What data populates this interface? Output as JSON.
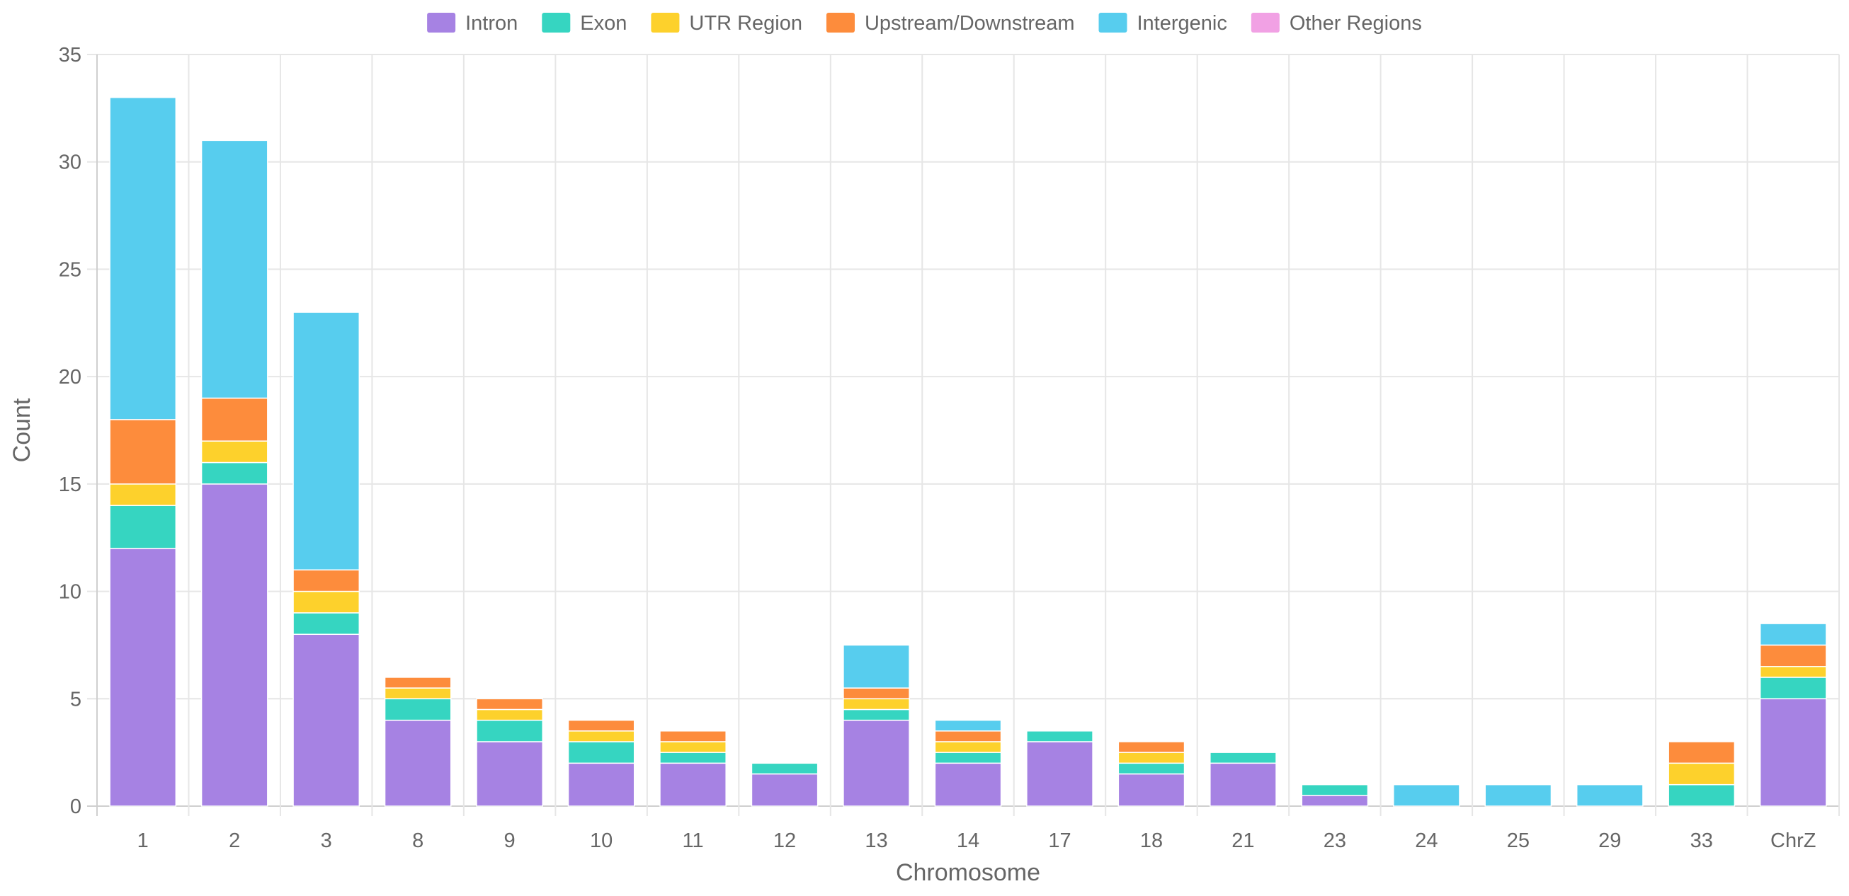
{
  "chart_data": {
    "type": "bar",
    "stacked": true,
    "xlabel": "Chromosome",
    "ylabel": "Count",
    "ylim": [
      0,
      35
    ],
    "ytick_step": 5,
    "grid": true,
    "legend_position": "top-center",
    "categories": [
      "1",
      "2",
      "3",
      "8",
      "9",
      "10",
      "11",
      "12",
      "13",
      "14",
      "17",
      "18",
      "21",
      "23",
      "24",
      "25",
      "29",
      "33",
      "ChrZ"
    ],
    "series": [
      {
        "name": "Intron",
        "color": "#a682e3",
        "values": [
          12,
          15,
          8,
          4,
          3,
          2,
          2,
          1.5,
          4,
          2,
          3,
          1.5,
          2,
          0.5,
          0,
          0,
          0,
          0,
          5
        ]
      },
      {
        "name": "Exon",
        "color": "#36d5c1",
        "values": [
          2,
          1,
          1,
          1,
          1,
          1,
          0.5,
          0.5,
          0.5,
          0.5,
          0.5,
          0.5,
          0.5,
          0.5,
          0,
          0,
          0,
          1,
          1
        ]
      },
      {
        "name": "UTR Region",
        "color": "#fdd12c",
        "values": [
          1,
          1,
          1,
          0.5,
          0.5,
          0.5,
          0.5,
          0,
          0.5,
          0.5,
          0,
          0.5,
          0,
          0,
          0,
          0,
          0,
          1,
          0.5
        ]
      },
      {
        "name": "Upstream/Downstream",
        "color": "#fd8c3c",
        "values": [
          3,
          2,
          1,
          0.5,
          0.5,
          0.5,
          0.5,
          0,
          0.5,
          0.5,
          0,
          0.5,
          0,
          0,
          0,
          0,
          0,
          1,
          1
        ]
      },
      {
        "name": "Intergenic",
        "color": "#57cdee",
        "values": [
          15,
          12,
          12,
          0,
          0,
          0,
          0,
          0,
          2,
          0.5,
          0,
          0,
          0,
          0,
          1,
          1,
          1,
          0,
          1
        ]
      },
      {
        "name": "Other Regions",
        "color": "#f1a1e4",
        "values": [
          0,
          0,
          0,
          0,
          0,
          0,
          0,
          0,
          0,
          0,
          0,
          0,
          0,
          0,
          0,
          0,
          0,
          0,
          0
        ]
      }
    ]
  }
}
